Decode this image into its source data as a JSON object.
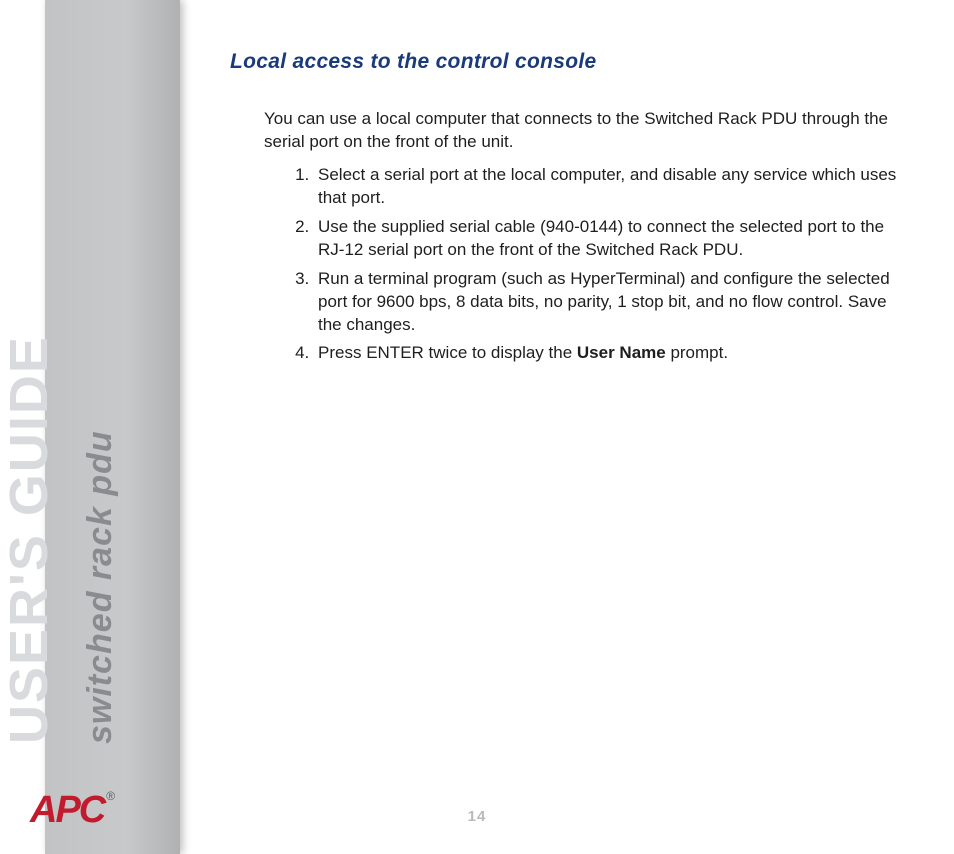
{
  "sidebar": {
    "title": "USER'S GUIDE",
    "subtitle": "switched rack pdu",
    "title_color": "#d9dadd",
    "subtitle_color": "#8a8b8e",
    "band_gradient_from": "#c2c3c5",
    "band_gradient_to": "#b0b1b3"
  },
  "logo": {
    "text": "APC",
    "registered": "®",
    "color": "#c11b2d"
  },
  "content": {
    "heading": "Local access to the control console",
    "heading_color": "#1a3a7a",
    "intro": "You can use a local computer that connects to the Switched Rack PDU through the serial port on the front of the unit.",
    "steps": [
      "Select a serial port at the local computer, and disable any service which uses that port.",
      "Use the supplied serial cable (940-0144) to connect the selected port to the RJ-12 serial port on the front of the Switched Rack PDU.",
      "Run a terminal program (such as HyperTerminal) and configure the selected port for 9600 bps, 8 data bits, no parity, 1 stop bit, and no flow control. Save the changes."
    ],
    "step4_pre": "Press ",
    "step4_enter": "ENTER",
    "step4_mid": " twice to display the ",
    "step4_bold": "User Name",
    "step4_post": " prompt."
  },
  "page_number": "14",
  "colors": {
    "body_text": "#1e1e1e",
    "page_number": "#b8babc",
    "background": "#ffffff"
  },
  "typography": {
    "heading_fontsize": 21,
    "body_fontsize": 17,
    "sidebar_title_fontsize": 54,
    "sidebar_subtitle_fontsize": 34,
    "logo_fontsize": 38
  }
}
